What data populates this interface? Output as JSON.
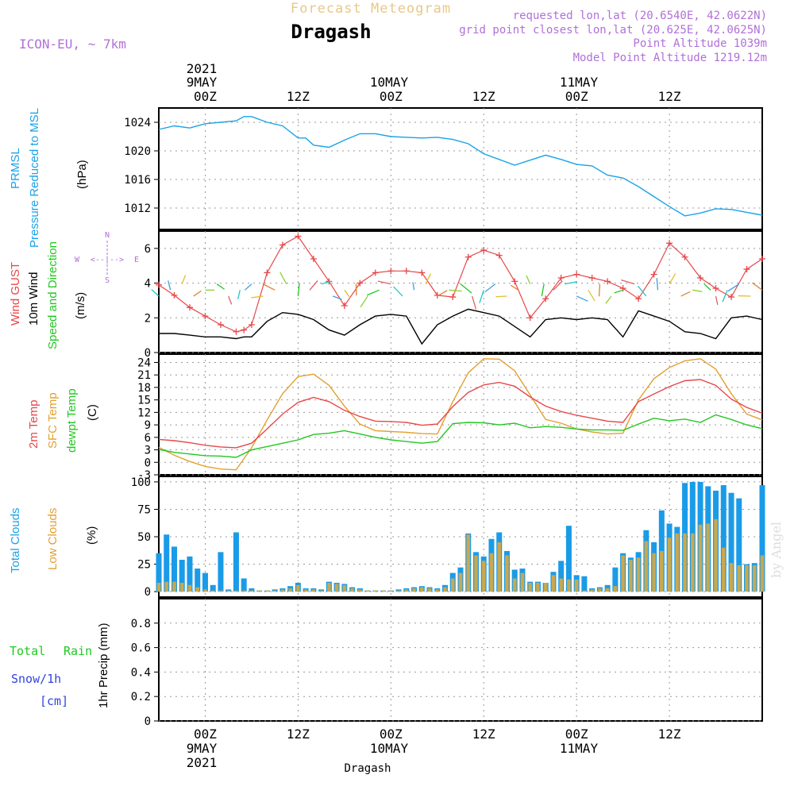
{
  "header": {
    "title": "Forecast Meteogram",
    "location": "Dragash",
    "model": "ICON-EU, ~ 7km",
    "requested": "requested lon,lat (20.6540E, 42.0622N)",
    "grid_point": "grid point closest lon,lat (20.625E, 42.0625N)",
    "point_altitude": "Point Altitude 1039m",
    "model_altitude": "Model Point Altitude 1219.12m",
    "watermark": "by Angel",
    "footer": "Dragash"
  },
  "time_axis": {
    "year": "2021",
    "top_labels": [
      "00Z",
      "12Z",
      "00Z",
      "12Z",
      "00Z",
      "12Z"
    ],
    "day_labels": [
      "9MAY",
      "10MAY",
      "11MAY"
    ]
  },
  "panels": {
    "pressure": {
      "label1": "PRMSL",
      "label2": "Pressure Reduced to MSL",
      "unit": "(hPa)"
    },
    "wind": {
      "label1": "Wind GUST",
      "label2": "10m Wind",
      "label3": "Speed and Direction",
      "unit": "(m/s)",
      "compass_n": "N",
      "compass_s": "S",
      "compass_w": "W",
      "compass_e": "E",
      "compass_mid": "<--|-->"
    },
    "temp": {
      "label1": "2m Temp",
      "label2": "SFC Temp",
      "label3": "dewpt Temp",
      "unit": "(C)"
    },
    "clouds": {
      "label1": "Total Clouds",
      "label2": "Low Clouds",
      "unit": "(%)"
    },
    "precip": {
      "label1": "Total",
      "label1b": "Rain",
      "label2": "Snow/1h",
      "label3": "[cm]",
      "ylabel": "1hr Precip (mm)"
    }
  },
  "colors": {
    "pressure": "#1aa3e8",
    "gust": "#e8474a",
    "wind": "#000000",
    "temp2m": "#e8474a",
    "sfc": "#e3a030",
    "dewpt": "#22c722",
    "total_cloud": "#1a9be8",
    "low_cloud": "#c8a850",
    "title": "#e8c888",
    "purple": "#b070d8",
    "green": "#22c722",
    "snow": "#3344dd"
  },
  "chart_data": [
    {
      "type": "line",
      "name": "pressure",
      "ylim": [
        1009,
        1026
      ],
      "yticks": [
        1012,
        1016,
        1020,
        1024
      ],
      "xlim": [
        -6,
        72
      ],
      "x": [
        -6,
        -4,
        -2,
        0,
        2,
        4,
        5,
        6,
        8,
        10,
        12,
        13,
        14,
        16,
        18,
        20,
        22,
        24,
        26,
        28,
        30,
        32,
        34,
        36,
        38,
        40,
        42,
        44,
        46,
        48,
        50,
        52,
        54,
        56,
        58,
        60,
        62,
        64,
        66,
        68,
        70,
        72
      ],
      "series": [
        {
          "values": [
            1023,
            1023.5,
            1023.2,
            1023.8,
            1024,
            1024.2,
            1024.8,
            1024.8,
            1024,
            1023.5,
            1021.8,
            1021.8,
            1020.8,
            1020.5,
            1021.5,
            1022.4,
            1022.4,
            1022,
            1021.9,
            1021.8,
            1021.9,
            1021.6,
            1021,
            1019.6,
            1018.8,
            1018,
            1018.7,
            1019.4,
            1018.8,
            1018.1,
            1017.9,
            1016.6,
            1016.2,
            1015,
            1013.6,
            1012.2,
            1010.9,
            1011.3,
            1011.9,
            1011.8,
            1011.4,
            1011
          ]
        }
      ]
    },
    {
      "type": "line",
      "name": "wind",
      "ylim": [
        0,
        7
      ],
      "yticks": [
        0,
        2,
        4,
        6
      ],
      "x": [
        -6,
        -4,
        -2,
        0,
        2,
        4,
        5,
        6,
        8,
        10,
        12,
        14,
        16,
        18,
        20,
        22,
        24,
        26,
        28,
        30,
        32,
        34,
        36,
        38,
        40,
        42,
        44,
        46,
        48,
        50,
        52,
        54,
        56,
        58,
        60,
        62,
        64,
        66,
        68,
        70,
        72
      ],
      "series": [
        {
          "name": "gust",
          "values": [
            3.9,
            3.3,
            2.6,
            2.1,
            1.6,
            1.2,
            1.3,
            1.6,
            4.6,
            6.2,
            6.7,
            5.4,
            4.1,
            2.7,
            4.0,
            4.6,
            4.7,
            4.7,
            4.6,
            3.3,
            3.2,
            5.5,
            5.9,
            5.6,
            4.1,
            2.0,
            3.1,
            4.3,
            4.5,
            4.3,
            4.1,
            3.7,
            3.1,
            4.5,
            6.3,
            5.5,
            4.3,
            3.7,
            3.2,
            4.8,
            5.4
          ]
        },
        {
          "name": "10m wind",
          "values": [
            1.1,
            1.1,
            1.0,
            0.9,
            0.9,
            0.8,
            0.9,
            0.9,
            1.8,
            2.3,
            2.2,
            1.9,
            1.3,
            1.0,
            1.6,
            2.1,
            2.2,
            2.1,
            0.5,
            1.6,
            2.1,
            2.5,
            2.3,
            2.1,
            1.5,
            0.9,
            1.9,
            2.0,
            1.9,
            2.0,
            1.9,
            0.9,
            2.4,
            2.1,
            1.8,
            1.2,
            1.1,
            0.8,
            2.0,
            2.1,
            1.9
          ]
        }
      ]
    },
    {
      "type": "line",
      "name": "temperature",
      "ylim": [
        -3,
        26
      ],
      "yticks": [
        -3,
        0,
        3,
        6,
        9,
        12,
        15,
        18,
        21,
        24
      ],
      "x": [
        -6,
        -4,
        -2,
        0,
        2,
        4,
        6,
        8,
        10,
        12,
        14,
        16,
        18,
        20,
        22,
        24,
        26,
        28,
        30,
        32,
        34,
        36,
        38,
        40,
        42,
        44,
        46,
        48,
        50,
        52,
        54,
        56,
        58,
        60,
        62,
        64,
        66,
        68,
        70,
        72
      ],
      "series": [
        {
          "name": "2m Temp",
          "values": [
            5.5,
            5.2,
            4.7,
            4.1,
            3.7,
            3.5,
            4.6,
            8.0,
            11.6,
            14.4,
            15.6,
            14.6,
            12.5,
            11.0,
            9.9,
            9.8,
            9.6,
            8.9,
            9.2,
            13.4,
            16.8,
            18.6,
            19.2,
            18.3,
            15.7,
            13.5,
            12.2,
            11.3,
            10.6,
            9.9,
            9.6,
            14.6,
            16.4,
            18.2,
            19.6,
            19.9,
            18.5,
            15.2,
            13.2,
            11.8
          ]
        },
        {
          "name": "SFC Temp",
          "values": [
            3.6,
            1.7,
            0.2,
            -1.0,
            -1.6,
            -1.8,
            3.5,
            10.2,
            16.5,
            20.6,
            21.2,
            18.5,
            13.5,
            9.2,
            7.6,
            7.4,
            7.2,
            6.9,
            6.8,
            14.6,
            21.5,
            24.9,
            24.8,
            22.0,
            16.2,
            10.3,
            9.4,
            8.0,
            7.3,
            6.8,
            7.0,
            15.0,
            20.1,
            22.8,
            24.4,
            24.9,
            22.4,
            16.5,
            11.6,
            10.2
          ]
        },
        {
          "name": "dewpt Temp",
          "values": [
            3.1,
            2.4,
            2.0,
            1.6,
            1.5,
            1.2,
            3.0,
            3.8,
            4.6,
            5.4,
            6.7,
            7.0,
            7.6,
            6.8,
            6.0,
            5.4,
            5.0,
            4.6,
            5.0,
            9.3,
            9.6,
            9.5,
            9.0,
            9.4,
            8.3,
            8.6,
            8.4,
            8.0,
            7.8,
            7.8,
            7.7,
            9.2,
            10.6,
            10.0,
            10.4,
            9.6,
            11.4,
            10.3,
            9.0,
            8.1
          ]
        }
      ]
    },
    {
      "type": "bar",
      "name": "clouds",
      "ylim": [
        -5,
        105
      ],
      "yticks": [
        0,
        25,
        50,
        75,
        100
      ],
      "x_start": -6,
      "x_step": 1,
      "series": [
        {
          "name": "Total Clouds",
          "values": [
            35,
            52,
            41,
            29,
            32,
            21,
            17,
            6,
            36,
            2,
            54,
            12,
            3,
            1,
            1,
            2,
            3,
            5,
            8,
            3,
            3,
            2,
            9,
            8,
            7,
            4,
            3,
            1,
            1,
            1,
            1,
            2,
            3,
            4,
            5,
            4,
            3,
            6,
            17,
            22,
            53,
            36,
            32,
            48,
            54,
            37,
            20,
            21,
            9,
            9,
            8,
            18,
            28,
            60,
            15,
            14,
            3,
            4,
            6,
            22,
            35,
            31,
            36,
            56,
            45,
            74,
            62,
            59,
            99,
            100,
            100,
            96,
            92,
            97,
            90,
            85,
            25,
            26,
            97
          ]
        },
        {
          "name": "Low Clouds",
          "values": [
            8,
            9,
            9,
            8,
            6,
            4,
            2,
            1,
            1,
            1,
            1,
            1,
            1,
            1,
            1,
            1,
            2,
            3,
            6,
            2,
            2,
            1,
            8,
            7,
            6,
            3,
            2,
            1,
            1,
            1,
            1,
            1,
            2,
            3,
            4,
            3,
            2,
            4,
            12,
            17,
            52,
            33,
            28,
            35,
            45,
            33,
            12,
            17,
            8,
            8,
            8,
            15,
            12,
            11,
            11,
            1,
            2,
            3,
            3,
            5,
            33,
            29,
            31,
            46,
            35,
            37,
            49,
            53,
            53,
            53,
            61,
            62,
            66,
            40,
            26,
            24,
            24,
            24,
            33
          ]
        }
      ]
    },
    {
      "type": "bar",
      "name": "precip",
      "ylim": [
        0,
        1.0
      ],
      "yticks": [
        0,
        0.2,
        0.4,
        0.6,
        0.8
      ],
      "series": [
        {
          "name": "1hr Precip",
          "values": []
        }
      ]
    }
  ]
}
